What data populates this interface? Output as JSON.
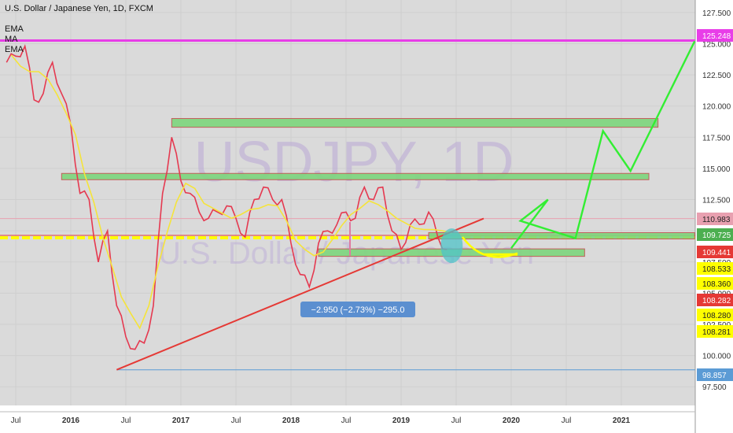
{
  "header": {
    "title": "U.S. Dollar / Japanese Yen, 1D, FXCM",
    "indicators": [
      "EMA",
      "MA",
      "EMA"
    ]
  },
  "watermark": {
    "symbol": "USDJPY, 1D",
    "name": "U.S. Dollar / Japanese Yen"
  },
  "measure_label": "−2.950 (−2.73%) −295.0",
  "chart_data": {
    "type": "line",
    "title": "U.S. Dollar / Japanese Yen, 1D, FXCM",
    "xlabel": "",
    "ylabel": "",
    "ylim": [
      96.0,
      128.5
    ],
    "y_ticks": [
      "127.500",
      "125.000",
      "122.500",
      "120.000",
      "117.500",
      "115.000",
      "112.500",
      "110.000",
      "107.500",
      "105.000",
      "102.500",
      "100.000",
      "97.500"
    ],
    "x_ticks": [
      "Jul",
      "2016",
      "Jul",
      "2017",
      "Jul",
      "2018",
      "Jul",
      "2019",
      "Jul",
      "2020",
      "Jul",
      "2021"
    ],
    "price_tags": [
      {
        "label": "125.248",
        "value": 125.248,
        "color": "#e83ee8"
      },
      {
        "label": "110.983",
        "value": 110.983,
        "color": "#e8a0b0"
      },
      {
        "label": "109.725",
        "value": 109.725,
        "color": "#4caf50"
      },
      {
        "label": "109.441",
        "value": 109.441,
        "color": "#e53935"
      },
      {
        "label": "108.533",
        "value": 108.533,
        "color": "#ffff00"
      },
      {
        "label": "108.360",
        "value": 108.36,
        "color": "#ffff00"
      },
      {
        "label": "108.282",
        "value": 108.282,
        "color": "#e53935"
      },
      {
        "label": "108.280",
        "value": 108.28,
        "color": "#ffff00"
      },
      {
        "label": "108.281",
        "value": 108.281,
        "color": "#ffff00"
      },
      {
        "label": "98.857",
        "value": 98.857,
        "color": "#5b9bd5"
      }
    ],
    "series": [
      {
        "name": "",
        "color": "#e53950",
        "x": [
          "2015-06",
          "2015-07",
          "2015-08",
          "2015-09",
          "2015-10",
          "2015-11",
          "2015-12",
          "2016-01",
          "2016-02",
          "2016-03",
          "2016-04",
          "2016-05",
          "2016-06",
          "2016-07",
          "2016-08",
          "2016-09",
          "2016-10",
          "2016-11",
          "2016-12",
          "2017-01",
          "2017-02",
          "2017-03",
          "2017-04",
          "2017-05",
          "2017-06",
          "2017-07",
          "2017-08",
          "2017-09",
          "2017-10",
          "2017-11",
          "2017-12",
          "2018-01",
          "2018-02",
          "2018-03",
          "2018-04",
          "2018-05",
          "2018-06",
          "2018-07",
          "2018-08",
          "2018-09",
          "2018-10",
          "2018-11",
          "2018-12",
          "2019-01",
          "2019-02",
          "2019-03",
          "2019-04",
          "2019-05",
          "2019-06"
        ],
        "y": [
          123.5,
          124.0,
          124.8,
          120.5,
          121.0,
          123.5,
          121.0,
          118.5,
          113.0,
          112.5,
          107.5,
          110.0,
          104.0,
          101.5,
          100.5,
          101.0,
          104.0,
          113.0,
          117.5,
          114.0,
          113.0,
          111.5,
          111.0,
          111.5,
          112.0,
          111.0,
          109.5,
          112.5,
          113.5,
          112.5,
          112.5,
          109.0,
          106.5,
          105.5,
          109.0,
          110.0,
          110.5,
          111.5,
          111.0,
          113.5,
          112.5,
          113.5,
          110.0,
          108.5,
          110.5,
          110.5,
          111.5,
          109.5,
          108.5
        ]
      }
    ],
    "zones": [
      {
        "from": "2016-12",
        "to": "2021-05",
        "low": 118.3,
        "high": 119.0
      },
      {
        "from": "2015-12",
        "to": "2021-04",
        "low": 114.1,
        "high": 114.6
      },
      {
        "from": "2019-04",
        "to": "2021-09",
        "low": 109.55,
        "high": 109.85
      },
      {
        "from": "2018-04",
        "to": "2020-09",
        "low": 107.95,
        "high": 108.55
      }
    ],
    "levels": [
      {
        "value": 125.248,
        "color": "#e83ee8"
      },
      {
        "value": 110.983,
        "color": "#e8a0b0"
      },
      {
        "value": 109.441,
        "color": "#ffff00"
      },
      {
        "value": 98.857,
        "color": "#5b9bd5"
      }
    ],
    "trendline": {
      "from": [
        "2016-06",
        98.857
      ],
      "to": [
        "2019-10",
        110.983
      ],
      "color": "#e53935"
    },
    "projection": {
      "color": "#33ee33",
      "points": [
        [
          "2020-01",
          108.6
        ],
        [
          "2020-05",
          112.5
        ],
        [
          "2020-02",
          110.8
        ],
        [
          "2020-08",
          109.4
        ],
        [
          "2020-11",
          118.0
        ],
        [
          "2021-02",
          114.8
        ],
        [
          "2021-09",
          125.2
        ]
      ]
    },
    "grid": true,
    "legend": "none"
  }
}
